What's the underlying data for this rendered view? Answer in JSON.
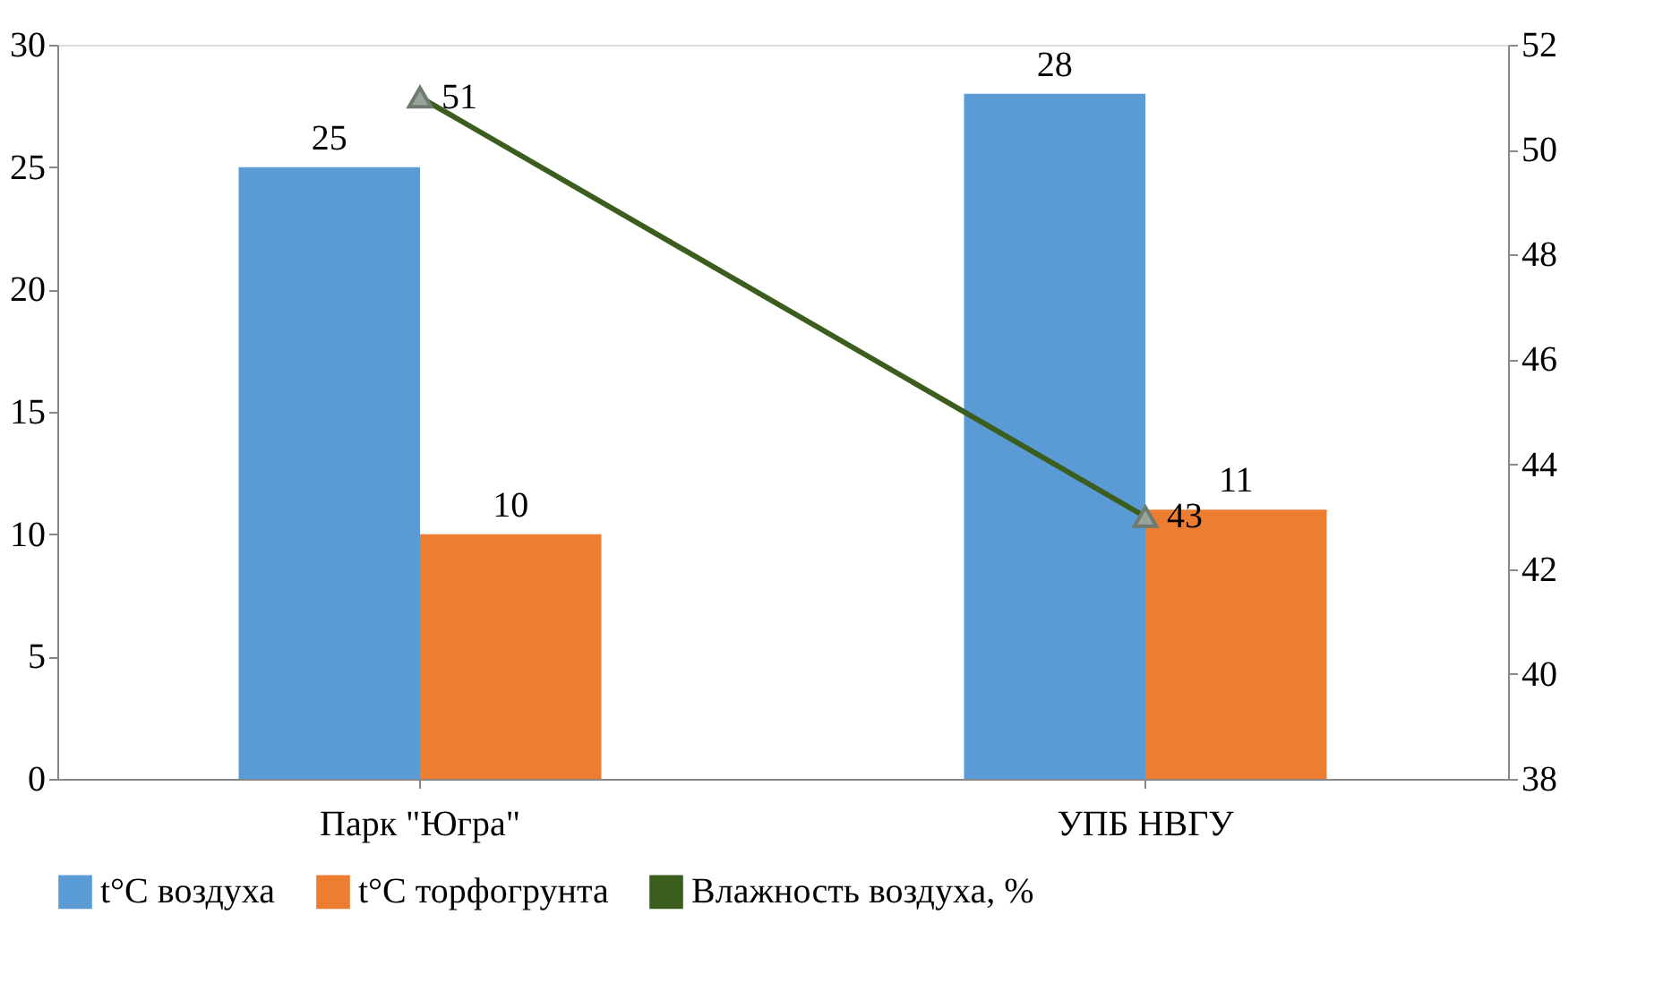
{
  "chart_data": {
    "type": "bar",
    "categories": [
      "Парк \"Югра\"",
      "УПБ НВГУ"
    ],
    "series": [
      {
        "name": "t°C воздуха",
        "color": "#5b9bd5",
        "values": [
          25,
          28
        ]
      },
      {
        "name": "t°C торфогрунта",
        "color": "#ed7d31",
        "values": [
          10,
          11
        ]
      },
      {
        "name": "Влажность воздуха, %",
        "color": "#3b5e1f",
        "type": "line",
        "axis": "y2",
        "marker": "triangle",
        "values": [
          51,
          43
        ]
      }
    ],
    "ylim": [
      0,
      30
    ],
    "yticks": [
      0,
      5,
      10,
      15,
      20,
      25,
      30
    ],
    "y2lim": [
      38,
      52
    ],
    "y2ticks": [
      38,
      40,
      42,
      44,
      46,
      48,
      50,
      52
    ],
    "data_labels": true,
    "legend": "bottom",
    "grid": false
  }
}
